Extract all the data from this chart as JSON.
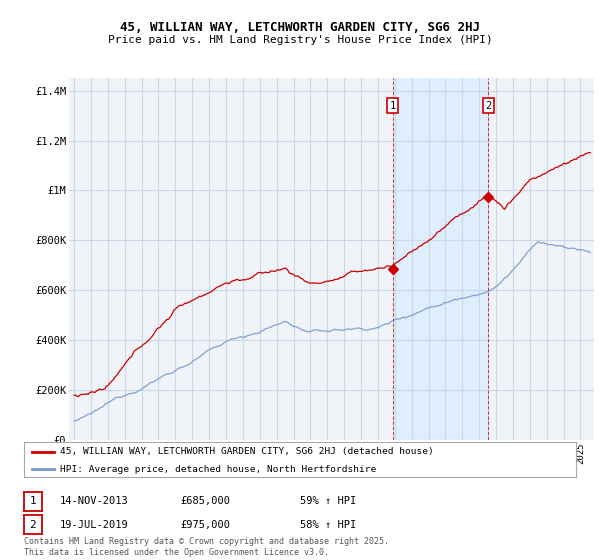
{
  "title_line1": "45, WILLIAN WAY, LETCHWORTH GARDEN CITY, SG6 2HJ",
  "title_line2": "Price paid vs. HM Land Registry's House Price Index (HPI)",
  "ylim": [
    0,
    1450000
  ],
  "yticks": [
    0,
    200000,
    400000,
    600000,
    800000,
    1000000,
    1200000,
    1400000
  ],
  "ytick_labels": [
    "£0",
    "£200K",
    "£400K",
    "£600K",
    "£800K",
    "£1M",
    "£1.2M",
    "£1.4M"
  ],
  "background_color": "#ffffff",
  "plot_bg_color": "#f0f4f8",
  "grid_color": "#c8d8e8",
  "line1_color": "#cc0000",
  "line2_color": "#7799cc",
  "highlight_color": "#ddeeff",
  "sale1_year": 2013.871,
  "sale1_price": 685000,
  "sale2_year": 2019.548,
  "sale2_price": 975000,
  "legend1_label": "45, WILLIAN WAY, LETCHWORTH GARDEN CITY, SG6 2HJ (detached house)",
  "legend2_label": "HPI: Average price, detached house, North Hertfordshire",
  "footer": "Contains HM Land Registry data © Crown copyright and database right 2025.\nThis data is licensed under the Open Government Licence v3.0.",
  "xstart": 1995,
  "xend": 2025,
  "seed": 12345
}
